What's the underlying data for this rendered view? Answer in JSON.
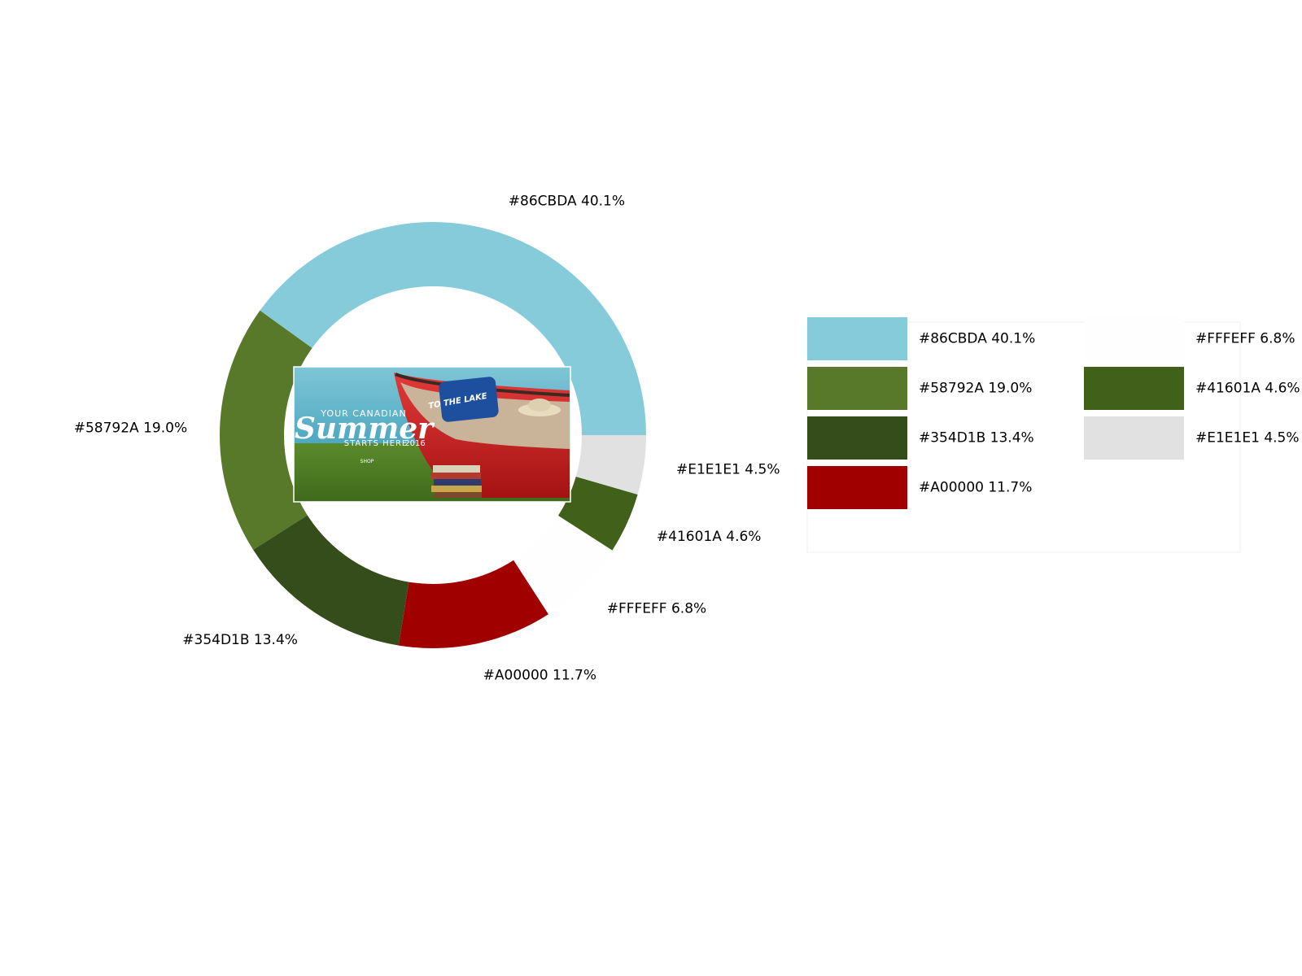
{
  "chart_data": {
    "type": "pie",
    "variant": "donut",
    "start_angle_deg": 0,
    "direction": "counterclockwise",
    "legend_placement": "right",
    "legend_columns": 2,
    "center_image": {
      "heading_small": "YOUR CANADIAN",
      "heading_large": "Summer",
      "subheading": "STARTS HERE",
      "year": "2016",
      "button_label": "SHOP",
      "pillow_text": "TO THE LAKE"
    },
    "slices": [
      {
        "label": "#86CBDA 40.1%",
        "color": "#86CBDA",
        "value": 40.1
      },
      {
        "label": "#58792A 19.0%",
        "color": "#58792A",
        "value": 19.0
      },
      {
        "label": "#354D1B 13.4%",
        "color": "#354D1B",
        "value": 13.4
      },
      {
        "label": "#A00000 11.7%",
        "color": "#A00000",
        "value": 11.7
      },
      {
        "label": "#FFFEFF 6.8%",
        "color": "#FFFEFF",
        "value": 6.8
      },
      {
        "label": "#41601A 4.6%",
        "color": "#41601A",
        "value": 4.6
      },
      {
        "label": "#E1E1E1 4.5%",
        "color": "#E1E1E1",
        "value": 4.5
      }
    ]
  }
}
